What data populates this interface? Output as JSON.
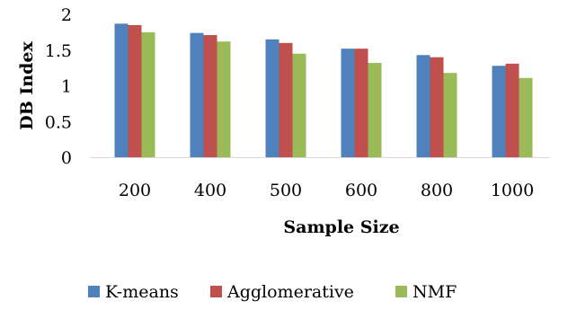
{
  "chart_data": {
    "type": "bar",
    "categories": [
      "200",
      "400",
      "500",
      "600",
      "800",
      "1000"
    ],
    "series": [
      {
        "name": "K-means",
        "color": "#4F81BD",
        "values": [
          1.87,
          1.74,
          1.65,
          1.52,
          1.43,
          1.28
        ]
      },
      {
        "name": "Agglomerative",
        "color": "#C0504D",
        "values": [
          1.85,
          1.71,
          1.6,
          1.52,
          1.4,
          1.31
        ]
      },
      {
        "name": "NMF",
        "color": "#9BBB59",
        "values": [
          1.75,
          1.62,
          1.45,
          1.32,
          1.18,
          1.11
        ]
      }
    ],
    "title": "",
    "xlabel": "Sample Size",
    "ylabel": "DB Index",
    "ylim": [
      0,
      2
    ],
    "yticks": [
      "0",
      "0.5",
      "1",
      "1.5",
      "2"
    ],
    "grid": false,
    "legend_position": "bottom"
  }
}
